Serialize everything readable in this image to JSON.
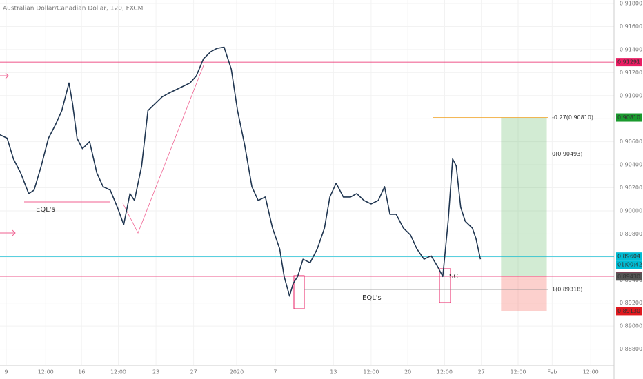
{
  "chart_data": {
    "type": "line",
    "title": "Australian Dollar/Canadian Dollar, 120, FXCM",
    "series": [
      {
        "name": "AUDCAD",
        "color": "#1f3550",
        "x": [
          0,
          8,
          15,
          23,
          32,
          38,
          46,
          54,
          62,
          69,
          77,
          81,
          86,
          92,
          100,
          108,
          115,
          123,
          131,
          138,
          145,
          150,
          158,
          165,
          173,
          181,
          188,
          196,
          204,
          212,
          219,
          227,
          235,
          242,
          250,
          258,
          265,
          273,
          281,
          288,
          296,
          304,
          312,
          317,
          323,
          327,
          332,
          338,
          346,
          354,
          362,
          368,
          375,
          383,
          391,
          398,
          406,
          414,
          422,
          429,
          435,
          442,
          450,
          458,
          465,
          473,
          481,
          488,
          494,
          500,
          505,
          509,
          514,
          519,
          527,
          531,
          536
        ],
        "values": [
          0.9066,
          0.9063,
          0.9045,
          0.9033,
          0.9015,
          0.9018,
          0.9039,
          0.9063,
          0.9075,
          0.9087,
          0.9111,
          0.9093,
          0.9063,
          0.9054,
          0.906,
          0.9033,
          0.9021,
          0.9018,
          0.9003,
          0.8988,
          0.9015,
          0.9009,
          0.9039,
          0.9087,
          0.9093,
          0.9099,
          0.9102,
          0.9105,
          0.9108,
          0.9111,
          0.9117,
          0.9132,
          0.9138,
          0.9141,
          0.9142,
          0.9123,
          0.9087,
          0.9057,
          0.9021,
          0.9009,
          0.9012,
          0.8985,
          0.8967,
          0.8943,
          0.8926,
          0.8937,
          0.8943,
          0.8958,
          0.8955,
          0.8967,
          0.8985,
          0.9012,
          0.9024,
          0.9012,
          0.9012,
          0.9015,
          0.9009,
          0.9006,
          0.9009,
          0.9021,
          0.8997,
          0.8997,
          0.8985,
          0.8979,
          0.8967,
          0.8958,
          0.8961,
          0.8952,
          0.8943,
          0.8991,
          0.9045,
          0.9039,
          0.9003,
          0.8991,
          0.8985,
          0.8976,
          0.8958
        ]
      }
    ],
    "xlim": [
      0,
      685
    ],
    "ylim": [
      0.8866,
      0.9183
    ],
    "xticks": [
      {
        "value": 7,
        "label": "9"
      },
      {
        "value": 51,
        "label": "12:00"
      },
      {
        "value": 91,
        "label": "16"
      },
      {
        "value": 132,
        "label": "12:00"
      },
      {
        "value": 174,
        "label": "23"
      },
      {
        "value": 216,
        "label": "27"
      },
      {
        "value": 264,
        "label": "2020"
      },
      {
        "value": 307,
        "label": "7"
      },
      {
        "value": 372,
        "label": "13"
      },
      {
        "value": 414,
        "label": "12:00"
      },
      {
        "value": 455,
        "label": "20"
      },
      {
        "value": 496,
        "label": "12:00"
      },
      {
        "value": 537,
        "label": "27"
      },
      {
        "value": 578,
        "label": "12:00"
      },
      {
        "value": 616,
        "label": "Feb"
      },
      {
        "value": 659,
        "label": "12:00"
      }
    ],
    "yticks": [
      {
        "value": 0.918,
        "label": "0.91800"
      },
      {
        "value": 0.916,
        "label": "0.91600"
      },
      {
        "value": 0.914,
        "label": "0.91400"
      },
      {
        "value": 0.912,
        "label": "0.91200"
      },
      {
        "value": 0.91,
        "label": "0.91000"
      },
      {
        "value": 0.908,
        "label": "0.90800"
      },
      {
        "value": 0.906,
        "label": "0.90600"
      },
      {
        "value": 0.904,
        "label": "0.90400"
      },
      {
        "value": 0.902,
        "label": "0.90200"
      },
      {
        "value": 0.9,
        "label": "0.90000"
      },
      {
        "value": 0.898,
        "label": "0.89800"
      },
      {
        "value": 0.896,
        "label": "0.89600"
      },
      {
        "value": 0.894,
        "label": "0.89400"
      },
      {
        "value": 0.892,
        "label": "0.89200"
      },
      {
        "value": 0.89,
        "label": "0.89000"
      },
      {
        "value": 0.888,
        "label": "0.88800"
      }
    ],
    "levels": [
      {
        "value": 0.91291,
        "label": "0.91291",
        "color": "#e91e63",
        "line": true
      },
      {
        "value": 0.9081,
        "label": "0.90810",
        "color": "#1a9a2e",
        "line": false
      },
      {
        "value": 0.89604,
        "label": "0.89604",
        "color": "#00bcd4",
        "line": true
      },
      {
        "value": 0.89432,
        "label": "0.89432",
        "color": "#e91e63",
        "line": true
      },
      {
        "value": 0.8943,
        "label": "0.89430",
        "color": "#555555",
        "line": false
      },
      {
        "value": 0.8913,
        "label": "0.89130",
        "color": "#e0191f",
        "line": false
      }
    ],
    "countdown": "01:00:42",
    "fib": [
      {
        "value": 0.9081,
        "label": "-0.27(0.90810)",
        "color": "#f0a020"
      },
      {
        "value": 0.90493,
        "label": "0(0.90493)",
        "color": "#888888"
      },
      {
        "value": 0.89318,
        "label": "1(0.89318)",
        "color": "#888888"
      }
    ],
    "position": {
      "start": 559,
      "end": 610,
      "target": 0.9081,
      "entry": 0.89432,
      "stop": 0.8913
    },
    "annotations": [
      "EQL's",
      "EQL's",
      "SC"
    ]
  }
}
